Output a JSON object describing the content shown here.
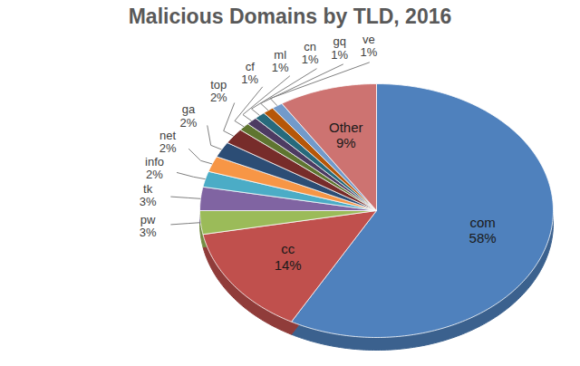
{
  "chart_data": {
    "type": "pie",
    "title": "Malicious Domains by TLD, 2016",
    "categories": [
      "com",
      "cc",
      "pw",
      "tk",
      "info",
      "net",
      "ga",
      "top",
      "cf",
      "ml",
      "cn",
      "gq",
      "ve",
      "Other"
    ],
    "values": [
      58,
      14,
      3,
      3,
      2,
      2,
      2,
      2,
      1,
      1,
      1,
      1,
      1,
      9
    ],
    "value_labels": [
      "58%",
      "14%",
      "3%",
      "3%",
      "2%",
      "2%",
      "2%",
      "2%",
      "1%",
      "1%",
      "1%",
      "1%",
      "1%",
      "9%"
    ],
    "colors": [
      "#4F81BD",
      "#C0504D",
      "#9BBB59",
      "#8064A2",
      "#4BACC6",
      "#F79646",
      "#2C4D75",
      "#772C2A",
      "#5F7530",
      "#4D3B62",
      "#276A7C",
      "#B65708",
      "#729ACA",
      "#CD7371"
    ],
    "data_labels": true
  }
}
